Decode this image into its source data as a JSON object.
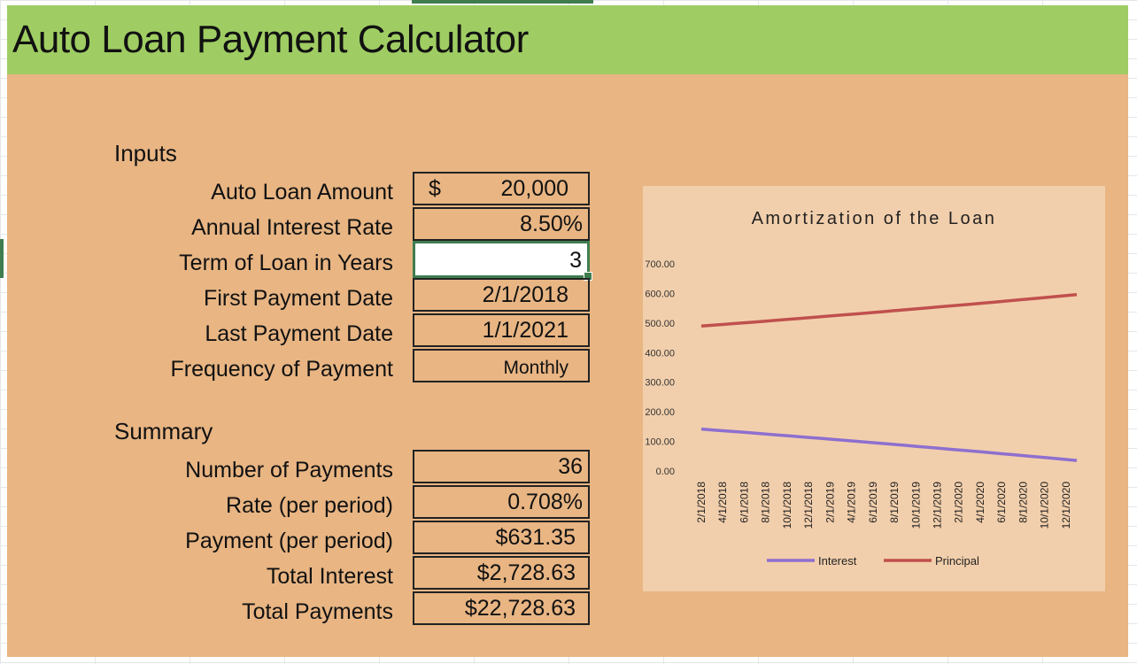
{
  "title": "Auto Loan Payment Calculator",
  "inputs": {
    "heading": "Inputs",
    "rows": [
      {
        "label": "Auto Loan Amount",
        "currency": "$",
        "value": "20,000"
      },
      {
        "label": "Annual Interest Rate",
        "value": "8.50%"
      },
      {
        "label": "Term of Loan in Years",
        "value": "3"
      },
      {
        "label": "First Payment Date",
        "value": "2/1/2018"
      },
      {
        "label": "Last Payment Date",
        "value": "1/1/2021"
      },
      {
        "label": "Frequency of Payment",
        "value": "Monthly"
      }
    ]
  },
  "summary": {
    "heading": "Summary",
    "rows": [
      {
        "label": "Number of Payments",
        "value": "36"
      },
      {
        "label": "Rate (per period)",
        "value": "0.708%"
      },
      {
        "label": "Payment (per period)",
        "value": "$631.35"
      },
      {
        "label": "Total Interest",
        "value": "$2,728.63"
      },
      {
        "label": "Total Payments",
        "value": "$22,728.63"
      }
    ]
  },
  "colors": {
    "title_bar": "#9fcd63",
    "sheet": "#e8b583",
    "chart_bg": "#f2cfac",
    "interest": "#8e6fcf",
    "principal": "#c0504d",
    "active_cell": "#3f7d4f"
  },
  "chart_data": {
    "type": "line",
    "title": "Amortization of the Loan",
    "x_tick_labels": [
      "2/1/2018",
      "4/1/2018",
      "6/1/2018",
      "8/1/2018",
      "10/1/2018",
      "12/1/2018",
      "2/1/2019",
      "4/1/2019",
      "6/1/2019",
      "8/1/2019",
      "10/1/2019",
      "12/1/2019",
      "2/1/2020",
      "4/1/2020",
      "6/1/2020",
      "8/1/2020",
      "10/1/2020",
      "12/1/2020"
    ],
    "y_tick_labels": [
      "0.00",
      "100.00",
      "200.00",
      "300.00",
      "400.00",
      "500.00",
      "600.00",
      "700.00"
    ],
    "ylim": [
      0,
      700
    ],
    "grid": false,
    "legend_position": "bottom",
    "series": [
      {
        "name": "Interest",
        "color": "#8e6fcf",
        "values": [
          141.67,
          138.93,
          136.17,
          133.39,
          130.6,
          127.79,
          124.96,
          122.12,
          119.26,
          116.38,
          113.49,
          110.58,
          107.65,
          104.7,
          101.74,
          98.76,
          95.76,
          92.75,
          89.72,
          86.67,
          83.6,
          80.52,
          77.42,
          74.3,
          71.16,
          68.01,
          64.84,
          61.65,
          58.44,
          55.22,
          51.97,
          48.71,
          45.43,
          42.14,
          38.82,
          35.48
        ]
      },
      {
        "name": "Principal",
        "color": "#c0504d",
        "values": [
          489.68,
          492.42,
          495.18,
          497.96,
          500.75,
          503.56,
          506.39,
          509.23,
          512.09,
          514.97,
          517.86,
          520.77,
          523.7,
          526.65,
          529.61,
          532.59,
          535.59,
          538.6,
          541.63,
          544.68,
          547.75,
          550.83,
          553.93,
          557.05,
          560.19,
          563.34,
          566.51,
          569.7,
          572.91,
          576.13,
          579.38,
          582.64,
          585.92,
          589.21,
          592.53,
          595.87
        ]
      }
    ]
  }
}
